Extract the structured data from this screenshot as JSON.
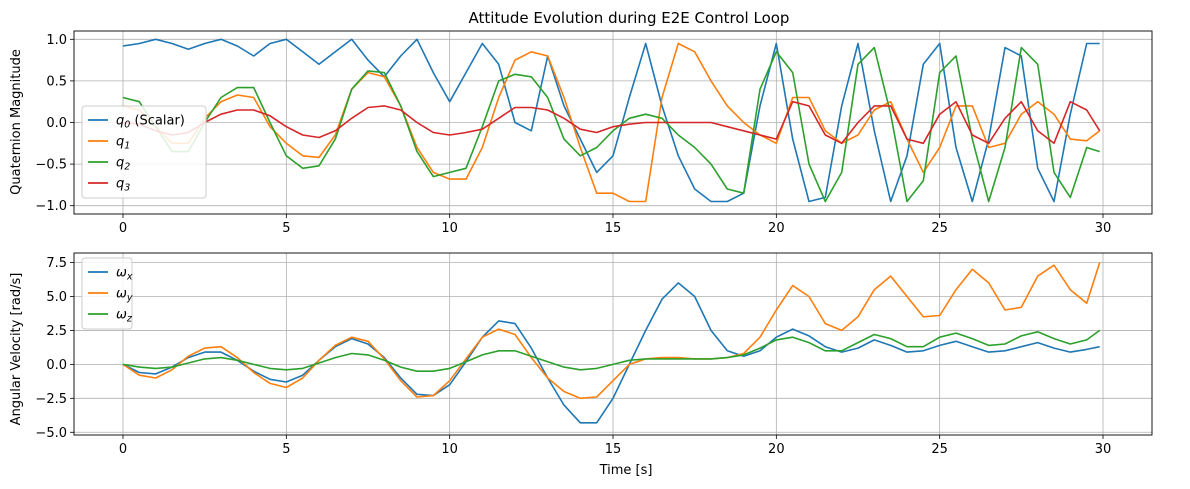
{
  "chart_data": [
    {
      "type": "line",
      "title": "Attitude Evolution during E2E Control Loop",
      "xlabel": "",
      "ylabel": "Quaternion Magnitude",
      "xlim": [
        -1.5,
        31.5
      ],
      "ylim": [
        -1.1,
        1.1
      ],
      "xticks": [
        0,
        5,
        10,
        15,
        20,
        25,
        30
      ],
      "yticks": [
        -1.0,
        -0.5,
        0.0,
        0.5,
        1.0
      ],
      "ytick_labels": [
        "−1.0",
        "−0.5",
        "0.0",
        "0.5",
        "1.0"
      ],
      "grid": true,
      "legend": "center-left",
      "series": [
        {
          "name": "q0 (Scalar)",
          "base": "q",
          "sub": "0",
          "suffix": " (Scalar)",
          "color": "#1f77b4",
          "x": [
            0,
            0.5,
            1,
            1.5,
            2,
            2.5,
            3,
            3.5,
            4,
            4.5,
            5,
            5.5,
            6,
            6.5,
            7,
            7.5,
            8,
            8.5,
            9,
            9.5,
            10,
            10.5,
            11,
            11.5,
            12,
            12.5,
            13,
            13.5,
            14,
            14.5,
            15,
            15.5,
            16,
            16.5,
            17,
            17.5,
            18,
            18.5,
            19,
            19.5,
            20,
            20.5,
            21,
            21.5,
            22,
            22.5,
            23,
            23.5,
            24,
            24.5,
            25,
            25.5,
            26,
            26.5,
            27,
            27.5,
            28,
            28.5,
            29,
            29.5,
            29.9
          ],
          "y": [
            0.92,
            0.95,
            1.0,
            0.95,
            0.88,
            0.95,
            1.0,
            0.92,
            0.8,
            0.95,
            1.0,
            0.85,
            0.7,
            0.85,
            1.0,
            0.75,
            0.55,
            0.8,
            1.0,
            0.6,
            0.25,
            0.6,
            0.95,
            0.7,
            0.0,
            -0.1,
            0.8,
            0.2,
            -0.2,
            -0.6,
            -0.4,
            0.3,
            0.95,
            0.2,
            -0.4,
            -0.8,
            -0.95,
            -0.95,
            -0.85,
            0.2,
            0.95,
            -0.2,
            -0.95,
            -0.9,
            0.2,
            0.95,
            -0.1,
            -0.95,
            -0.4,
            0.7,
            0.95,
            -0.3,
            -0.95,
            -0.2,
            0.9,
            0.8,
            -0.55,
            -0.95,
            0.1,
            0.95,
            0.95
          ]
        },
        {
          "name": "q1",
          "base": "q",
          "sub": "1",
          "suffix": "",
          "color": "#ff7f0e",
          "x": [
            0,
            0.5,
            1,
            1.5,
            2,
            2.5,
            3,
            3.5,
            4,
            4.5,
            5,
            5.5,
            6,
            6.5,
            7,
            7.5,
            8,
            8.5,
            9,
            9.5,
            10,
            10.5,
            11,
            11.5,
            12,
            12.5,
            13,
            13.5,
            14,
            14.5,
            15,
            15.5,
            16,
            16.5,
            17,
            17.5,
            18,
            18.5,
            19,
            19.5,
            20,
            20.5,
            21,
            21.5,
            22,
            22.5,
            23,
            23.5,
            24,
            24.5,
            25,
            25.5,
            26,
            26.5,
            27,
            27.5,
            28,
            28.5,
            29,
            29.5,
            29.9
          ],
          "y": [
            0.2,
            0.15,
            -0.05,
            -0.25,
            -0.25,
            0.05,
            0.25,
            0.33,
            0.3,
            -0.05,
            -0.25,
            -0.4,
            -0.42,
            -0.15,
            0.4,
            0.6,
            0.55,
            0.2,
            -0.3,
            -0.6,
            -0.68,
            -0.68,
            -0.3,
            0.3,
            0.75,
            0.85,
            0.8,
            0.3,
            -0.3,
            -0.85,
            -0.85,
            -0.95,
            -0.95,
            0.3,
            0.95,
            0.85,
            0.5,
            0.2,
            0.0,
            -0.15,
            -0.25,
            0.3,
            0.3,
            -0.1,
            -0.25,
            -0.15,
            0.15,
            0.25,
            -0.2,
            -0.6,
            -0.3,
            0.2,
            0.2,
            -0.3,
            -0.25,
            0.1,
            0.25,
            0.1,
            -0.2,
            -0.22,
            -0.1
          ]
        },
        {
          "name": "q2",
          "base": "q",
          "sub": "2",
          "suffix": "",
          "color": "#2ca02c",
          "x": [
            0,
            0.5,
            1,
            1.5,
            2,
            2.5,
            3,
            3.5,
            4,
            4.5,
            5,
            5.5,
            6,
            6.5,
            7,
            7.5,
            8,
            8.5,
            9,
            9.5,
            10,
            10.5,
            11,
            11.5,
            12,
            12.5,
            13,
            13.5,
            14,
            14.5,
            15,
            15.5,
            16,
            16.5,
            17,
            17.5,
            18,
            18.5,
            19,
            19.5,
            20,
            20.5,
            21,
            21.5,
            22,
            22.5,
            23,
            23.5,
            24,
            24.5,
            25,
            25.5,
            26,
            26.5,
            27,
            27.5,
            28,
            28.5,
            29,
            29.5,
            29.9
          ],
          "y": [
            0.3,
            0.25,
            -0.05,
            -0.35,
            -0.35,
            0.0,
            0.3,
            0.42,
            0.42,
            0.0,
            -0.4,
            -0.55,
            -0.52,
            -0.2,
            0.4,
            0.62,
            0.6,
            0.2,
            -0.35,
            -0.65,
            -0.6,
            -0.55,
            -0.05,
            0.5,
            0.58,
            0.55,
            0.3,
            -0.2,
            -0.4,
            -0.3,
            -0.1,
            0.05,
            0.1,
            0.05,
            -0.15,
            -0.3,
            -0.5,
            -0.8,
            -0.85,
            0.4,
            0.85,
            0.6,
            -0.5,
            -0.95,
            -0.6,
            0.7,
            0.9,
            0.1,
            -0.95,
            -0.7,
            0.6,
            0.8,
            -0.2,
            -0.95,
            -0.3,
            0.9,
            0.7,
            -0.6,
            -0.9,
            -0.3,
            -0.35
          ]
        },
        {
          "name": "q3",
          "base": "q",
          "sub": "3",
          "suffix": "",
          "color": "#d62728",
          "x": [
            0,
            0.5,
            1,
            1.5,
            2,
            2.5,
            3,
            3.5,
            4,
            4.5,
            5,
            5.5,
            6,
            6.5,
            7,
            7.5,
            8,
            8.5,
            9,
            9.5,
            10,
            10.5,
            11,
            11.5,
            12,
            12.5,
            13,
            13.5,
            14,
            14.5,
            15,
            15.5,
            16,
            16.5,
            17,
            17.5,
            18,
            18.5,
            19,
            19.5,
            20,
            20.5,
            21,
            21.5,
            22,
            22.5,
            23,
            23.5,
            24,
            24.5,
            25,
            25.5,
            26,
            26.5,
            27,
            27.5,
            28,
            28.5,
            29,
            29.5,
            29.9
          ],
          "y": [
            0.0,
            -0.02,
            -0.1,
            -0.15,
            -0.12,
            0.0,
            0.1,
            0.15,
            0.15,
            0.08,
            -0.05,
            -0.15,
            -0.18,
            -0.1,
            0.05,
            0.18,
            0.2,
            0.15,
            0.0,
            -0.12,
            -0.15,
            -0.12,
            -0.08,
            0.05,
            0.18,
            0.18,
            0.15,
            0.05,
            -0.08,
            -0.12,
            -0.05,
            -0.02,
            0.0,
            0.0,
            0.0,
            0.0,
            0.0,
            -0.05,
            -0.1,
            -0.15,
            -0.2,
            0.25,
            0.2,
            -0.15,
            -0.25,
            0.0,
            0.2,
            0.2,
            -0.2,
            -0.25,
            0.1,
            0.25,
            -0.15,
            -0.25,
            0.05,
            0.25,
            -0.1,
            -0.25,
            0.25,
            0.15,
            -0.1
          ]
        }
      ]
    },
    {
      "type": "line",
      "title": "",
      "xlabel": "Time [s]",
      "ylabel": "Angular Velocity [rad/s]",
      "xlim": [
        -1.5,
        31.5
      ],
      "ylim": [
        -5.2,
        8.2
      ],
      "xticks": [
        0,
        5,
        10,
        15,
        20,
        25,
        30
      ],
      "yticks": [
        -5.0,
        -2.5,
        0.0,
        2.5,
        5.0,
        7.5
      ],
      "ytick_labels": [
        "−5.0",
        "−2.5",
        "0.0",
        "2.5",
        "5.0",
        "7.5"
      ],
      "grid": true,
      "legend": "top-left",
      "series": [
        {
          "name": "ωx",
          "base": "ω",
          "sub": "x",
          "suffix": "",
          "color": "#1f77b4",
          "x": [
            0,
            0.5,
            1,
            1.5,
            2,
            2.5,
            3,
            3.5,
            4,
            4.5,
            5,
            5.5,
            6,
            6.5,
            7,
            7.5,
            8,
            8.5,
            9,
            9.5,
            10,
            10.5,
            11,
            11.5,
            12,
            12.5,
            13,
            13.5,
            14,
            14.5,
            15,
            15.5,
            16,
            16.5,
            17,
            17.5,
            18,
            18.5,
            19,
            19.5,
            20,
            20.5,
            21,
            21.5,
            22,
            22.5,
            23,
            23.5,
            24,
            24.5,
            25,
            25.5,
            26,
            26.5,
            27,
            27.5,
            28,
            28.5,
            29,
            29.5,
            29.9
          ],
          "y": [
            0.0,
            -0.6,
            -0.7,
            -0.2,
            0.5,
            0.9,
            0.9,
            0.3,
            -0.5,
            -1.1,
            -1.3,
            -0.8,
            0.3,
            1.3,
            1.9,
            1.5,
            0.5,
            -1.0,
            -2.2,
            -2.3,
            -1.5,
            0.2,
            2.0,
            3.2,
            3.0,
            1.2,
            -1.0,
            -3.0,
            -4.3,
            -4.3,
            -2.5,
            0.0,
            2.5,
            4.8,
            6.0,
            5.0,
            2.5,
            1.0,
            0.6,
            1.0,
            2.0,
            2.6,
            2.1,
            1.3,
            0.9,
            1.2,
            1.8,
            1.4,
            0.9,
            1.0,
            1.4,
            1.7,
            1.3,
            0.9,
            1.0,
            1.3,
            1.6,
            1.2,
            0.9,
            1.1,
            1.3
          ]
        },
        {
          "name": "ωy",
          "base": "ω",
          "sub": "y",
          "suffix": "",
          "color": "#ff7f0e",
          "x": [
            0,
            0.5,
            1,
            1.5,
            2,
            2.5,
            3,
            3.5,
            4,
            4.5,
            5,
            5.5,
            6,
            6.5,
            7,
            7.5,
            8,
            8.5,
            9,
            9.5,
            10,
            10.5,
            11,
            11.5,
            12,
            12.5,
            13,
            13.5,
            14,
            14.5,
            15,
            15.5,
            16,
            16.5,
            17,
            17.5,
            18,
            18.5,
            19,
            19.5,
            20,
            20.5,
            21,
            21.5,
            22,
            22.5,
            23,
            23.5,
            24,
            24.5,
            25,
            25.5,
            26,
            26.5,
            27,
            27.5,
            28,
            28.5,
            29,
            29.5,
            29.9
          ],
          "y": [
            0.0,
            -0.8,
            -1.0,
            -0.4,
            0.6,
            1.2,
            1.3,
            0.5,
            -0.6,
            -1.4,
            -1.7,
            -1.0,
            0.3,
            1.4,
            2.0,
            1.7,
            0.4,
            -1.2,
            -2.4,
            -2.3,
            -1.2,
            0.4,
            2.0,
            2.6,
            2.2,
            0.5,
            -1.0,
            -2.0,
            -2.5,
            -2.4,
            -1.2,
            0.0,
            0.4,
            0.5,
            0.5,
            0.4,
            0.4,
            0.5,
            0.8,
            2.0,
            4.0,
            5.8,
            5.0,
            3.0,
            2.5,
            3.5,
            5.5,
            6.5,
            5.0,
            3.5,
            3.6,
            5.5,
            7.0,
            6.0,
            4.0,
            4.2,
            6.5,
            7.3,
            5.5,
            4.5,
            7.5
          ]
        },
        {
          "name": "ωz",
          "base": "ω",
          "sub": "z",
          "suffix": "",
          "color": "#2ca02c",
          "x": [
            0,
            0.5,
            1,
            1.5,
            2,
            2.5,
            3,
            3.5,
            4,
            4.5,
            5,
            5.5,
            6,
            6.5,
            7,
            7.5,
            8,
            8.5,
            9,
            9.5,
            10,
            10.5,
            11,
            11.5,
            12,
            12.5,
            13,
            13.5,
            14,
            14.5,
            15,
            15.5,
            16,
            16.5,
            17,
            17.5,
            18,
            18.5,
            19,
            19.5,
            20,
            20.5,
            21,
            21.5,
            22,
            22.5,
            23,
            23.5,
            24,
            24.5,
            25,
            25.5,
            26,
            26.5,
            27,
            27.5,
            28,
            28.5,
            29,
            29.5,
            29.9
          ],
          "y": [
            0.0,
            -0.2,
            -0.3,
            -0.2,
            0.1,
            0.4,
            0.5,
            0.3,
            0.0,
            -0.3,
            -0.4,
            -0.3,
            0.1,
            0.5,
            0.8,
            0.7,
            0.3,
            -0.2,
            -0.5,
            -0.5,
            -0.3,
            0.2,
            0.7,
            1.0,
            1.0,
            0.6,
            0.2,
            -0.2,
            -0.4,
            -0.3,
            0.0,
            0.3,
            0.4,
            0.4,
            0.4,
            0.4,
            0.4,
            0.5,
            0.7,
            1.2,
            1.8,
            2.0,
            1.6,
            1.0,
            1.0,
            1.6,
            2.2,
            1.9,
            1.3,
            1.3,
            2.0,
            2.3,
            1.9,
            1.4,
            1.5,
            2.1,
            2.4,
            1.9,
            1.5,
            1.8,
            2.5
          ]
        }
      ]
    }
  ]
}
